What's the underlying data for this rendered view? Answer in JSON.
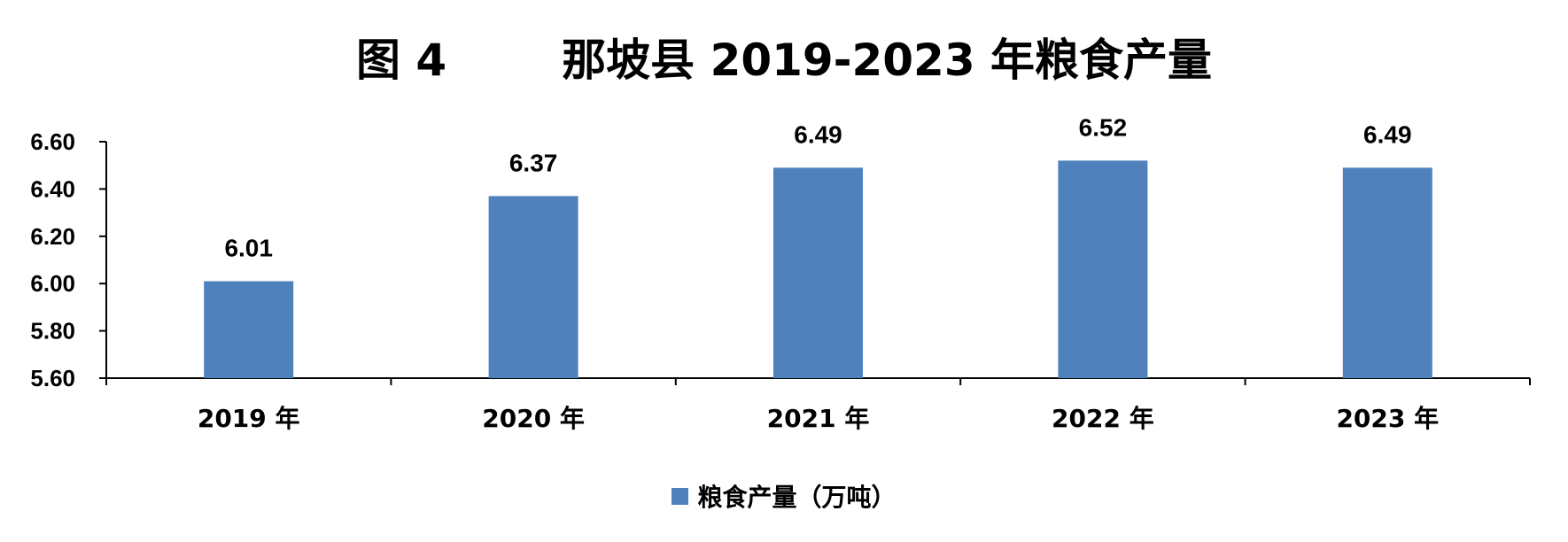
{
  "chart_data": {
    "type": "bar",
    "title_label": "图 4",
    "title": "那坡县 2019-2023 年粮食产量",
    "categories": [
      "2019 年",
      "2020 年",
      "2021 年",
      "2022 年",
      "2023 年"
    ],
    "series": [
      {
        "name": "粮食产量（万吨）",
        "values": [
          6.01,
          6.37,
          6.49,
          6.52,
          6.49
        ],
        "color": "#4F81BD"
      }
    ],
    "data_labels": [
      "6.01",
      "6.37",
      "6.49",
      "6.52",
      "6.49"
    ],
    "y_ticks": [
      "5.60",
      "5.80",
      "6.00",
      "6.20",
      "6.40",
      "6.60"
    ],
    "ylim": [
      5.6,
      6.6
    ],
    "grid": false,
    "legend_position": "bottom"
  }
}
